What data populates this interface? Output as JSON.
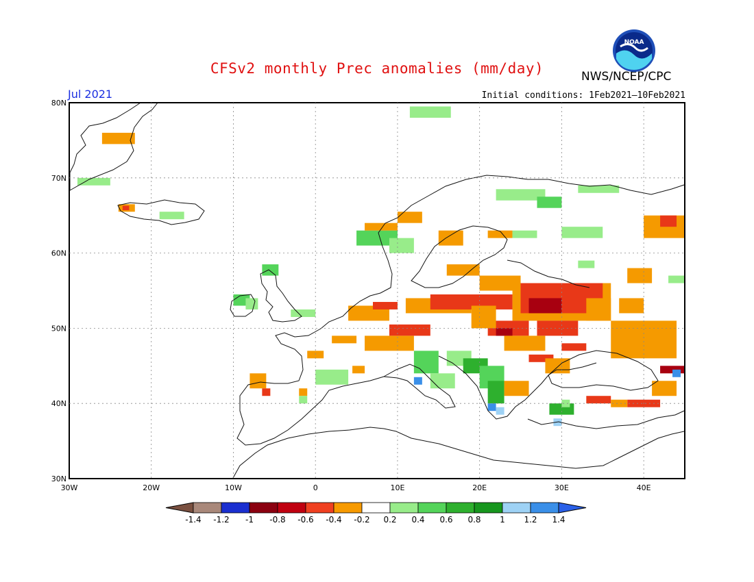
{
  "header": {
    "title": "CFSv2 monthly Prec anomalies (mm/day)",
    "org": "NWS/NCEP/CPC",
    "logo_text": "NOAA",
    "month": "Jul 2021",
    "init": "Initial conditions: 1Feb2021—10Feb2021"
  },
  "map": {
    "lat_labels": [
      "80N",
      "70N",
      "60N",
      "50N",
      "40N",
      "30N"
    ],
    "lon_labels": [
      "30W",
      "20W",
      "10W",
      "0",
      "10E",
      "20E",
      "30E",
      "40E"
    ],
    "lon_range": [
      -30,
      45
    ],
    "lat_range": [
      30,
      80
    ],
    "anomaly_cells": [
      {
        "lon": -26,
        "lat": 74.5,
        "w": 4,
        "h": 1.5,
        "cls": "o"
      },
      {
        "lon": -29,
        "lat": 69,
        "w": 4,
        "h": 1,
        "cls": "lg"
      },
      {
        "lon": -24,
        "lat": 65.5,
        "w": 2,
        "h": 1,
        "cls": "o"
      },
      {
        "lon": -23.5,
        "lat": 65.7,
        "w": 0.8,
        "h": 0.6,
        "cls": "r"
      },
      {
        "lon": -19,
        "lat": 64.5,
        "w": 3,
        "h": 1,
        "cls": "lg"
      },
      {
        "lon": -10,
        "lat": 53,
        "w": 2,
        "h": 1.5,
        "cls": "g"
      },
      {
        "lon": -8.5,
        "lat": 52.5,
        "w": 1.5,
        "h": 1.5,
        "cls": "lg"
      },
      {
        "lon": -6.5,
        "lat": 57,
        "w": 2,
        "h": 1.5,
        "cls": "g"
      },
      {
        "lon": -3,
        "lat": 51.5,
        "w": 3,
        "h": 1,
        "cls": "lg"
      },
      {
        "lon": 5,
        "lat": 61,
        "w": 5,
        "h": 2,
        "cls": "g"
      },
      {
        "lon": 6,
        "lat": 63,
        "w": 4,
        "h": 1,
        "cls": "o"
      },
      {
        "lon": 10,
        "lat": 64,
        "w": 3,
        "h": 1.5,
        "cls": "o"
      },
      {
        "lon": 9,
        "lat": 60,
        "w": 3,
        "h": 2,
        "cls": "lg"
      },
      {
        "lon": 15,
        "lat": 61,
        "w": 3,
        "h": 2,
        "cls": "o"
      },
      {
        "lon": 21,
        "lat": 62,
        "w": 3,
        "h": 1,
        "cls": "o"
      },
      {
        "lon": 22,
        "lat": 67,
        "w": 6,
        "h": 1.5,
        "cls": "lg"
      },
      {
        "lon": 27,
        "lat": 66,
        "w": 3,
        "h": 1.5,
        "cls": "g"
      },
      {
        "lon": 32,
        "lat": 68,
        "w": 5,
        "h": 1,
        "cls": "lg"
      },
      {
        "lon": 30,
        "lat": 62,
        "w": 5,
        "h": 1.5,
        "cls": "lg"
      },
      {
        "lon": 24,
        "lat": 62,
        "w": 3,
        "h": 1,
        "cls": "lg"
      },
      {
        "lon": 16,
        "lat": 57,
        "w": 4,
        "h": 1.5,
        "cls": "o"
      },
      {
        "lon": 11.5,
        "lat": 78,
        "w": 5,
        "h": 1.5,
        "cls": "lg"
      },
      {
        "lon": 38,
        "lat": 56,
        "w": 3,
        "h": 2,
        "cls": "o"
      },
      {
        "lon": 40,
        "lat": 62,
        "w": 5,
        "h": 3,
        "cls": "o"
      },
      {
        "lon": 42,
        "lat": 63.5,
        "w": 2,
        "h": 1.5,
        "cls": "r"
      },
      {
        "lon": 43,
        "lat": 56,
        "w": 2,
        "h": 1,
        "cls": "lg"
      },
      {
        "lon": 32,
        "lat": 58,
        "w": 2,
        "h": 1,
        "cls": "lg"
      },
      {
        "lon": 4,
        "lat": 51,
        "w": 5,
        "h": 2,
        "cls": "o"
      },
      {
        "lon": 7,
        "lat": 52.5,
        "w": 3,
        "h": 1,
        "cls": "r"
      },
      {
        "lon": 11,
        "lat": 52,
        "w": 8,
        "h": 2,
        "cls": "o"
      },
      {
        "lon": 14,
        "lat": 52.5,
        "w": 10,
        "h": 2,
        "cls": "r"
      },
      {
        "lon": 20,
        "lat": 55,
        "w": 5,
        "h": 2,
        "cls": "o"
      },
      {
        "lon": 24,
        "lat": 51,
        "w": 12,
        "h": 5,
        "cls": "o"
      },
      {
        "lon": 25,
        "lat": 52,
        "w": 10,
        "h": 4,
        "cls": "r"
      },
      {
        "lon": 26,
        "lat": 52,
        "w": 4,
        "h": 2,
        "cls": "dr"
      },
      {
        "lon": 21,
        "lat": 49,
        "w": 5,
        "h": 2,
        "cls": "r"
      },
      {
        "lon": 22,
        "lat": 49,
        "w": 2,
        "h": 1,
        "cls": "dr"
      },
      {
        "lon": 19,
        "lat": 50,
        "w": 3,
        "h": 3,
        "cls": "o"
      },
      {
        "lon": 27,
        "lat": 49,
        "w": 5,
        "h": 2,
        "cls": "r"
      },
      {
        "lon": 9,
        "lat": 49,
        "w": 5,
        "h": 1.5,
        "cls": "r"
      },
      {
        "lon": 6,
        "lat": 47,
        "w": 6,
        "h": 2,
        "cls": "o"
      },
      {
        "lon": 2,
        "lat": 48,
        "w": 3,
        "h": 1,
        "cls": "o"
      },
      {
        "lon": -1,
        "lat": 46,
        "w": 2,
        "h": 1,
        "cls": "o"
      },
      {
        "lon": 0,
        "lat": 42.5,
        "w": 4,
        "h": 2,
        "cls": "lg"
      },
      {
        "lon": 4.5,
        "lat": 44,
        "w": 1.5,
        "h": 1,
        "cls": "o"
      },
      {
        "lon": -8,
        "lat": 42,
        "w": 2,
        "h": 2,
        "cls": "o"
      },
      {
        "lon": -6.5,
        "lat": 41,
        "w": 1,
        "h": 1,
        "cls": "r"
      },
      {
        "lon": -2,
        "lat": 41,
        "w": 1,
        "h": 1,
        "cls": "o"
      },
      {
        "lon": -2,
        "lat": 40,
        "w": 1,
        "h": 1,
        "cls": "lg"
      },
      {
        "lon": 12,
        "lat": 44,
        "w": 3,
        "h": 3,
        "cls": "g"
      },
      {
        "lon": 12,
        "lat": 42.5,
        "w": 1,
        "h": 1,
        "cls": "b"
      },
      {
        "lon": 14,
        "lat": 42,
        "w": 3,
        "h": 2,
        "cls": "lg"
      },
      {
        "lon": 16,
        "lat": 45,
        "w": 3,
        "h": 2,
        "cls": "lg"
      },
      {
        "lon": 18,
        "lat": 44,
        "w": 3,
        "h": 2,
        "cls": "mg"
      },
      {
        "lon": 20,
        "lat": 42,
        "w": 3,
        "h": 3,
        "cls": "g"
      },
      {
        "lon": 21,
        "lat": 40,
        "w": 2,
        "h": 3,
        "cls": "mg"
      },
      {
        "lon": 21,
        "lat": 39,
        "w": 1,
        "h": 1,
        "cls": "b"
      },
      {
        "lon": 22,
        "lat": 38.5,
        "w": 1,
        "h": 1,
        "cls": "lb"
      },
      {
        "lon": 23,
        "lat": 41,
        "w": 3,
        "h": 2,
        "cls": "o"
      },
      {
        "lon": 23,
        "lat": 47,
        "w": 5,
        "h": 2,
        "cls": "o"
      },
      {
        "lon": 26,
        "lat": 45.5,
        "w": 3,
        "h": 1,
        "cls": "r"
      },
      {
        "lon": 28,
        "lat": 44,
        "w": 3,
        "h": 2,
        "cls": "o"
      },
      {
        "lon": 30,
        "lat": 47,
        "w": 3,
        "h": 1,
        "cls": "r"
      },
      {
        "lon": 36,
        "lat": 46,
        "w": 8,
        "h": 5,
        "cls": "o"
      },
      {
        "lon": 42,
        "lat": 44,
        "w": 3,
        "h": 1,
        "cls": "dr"
      },
      {
        "lon": 43.5,
        "lat": 43.5,
        "w": 1,
        "h": 1,
        "cls": "b"
      },
      {
        "lon": 41,
        "lat": 41,
        "w": 3,
        "h": 2,
        "cls": "o"
      },
      {
        "lon": 33,
        "lat": 40,
        "w": 3,
        "h": 1,
        "cls": "r"
      },
      {
        "lon": 38,
        "lat": 39.5,
        "w": 4,
        "h": 1,
        "cls": "r"
      },
      {
        "lon": 36,
        "lat": 39.5,
        "w": 2,
        "h": 1,
        "cls": "o"
      },
      {
        "lon": 28.5,
        "lat": 38.5,
        "w": 3,
        "h": 1.5,
        "cls": "mg"
      },
      {
        "lon": 29,
        "lat": 37,
        "w": 1,
        "h": 1,
        "cls": "lb"
      },
      {
        "lon": 30,
        "lat": 39.5,
        "w": 1,
        "h": 1,
        "cls": "lg"
      },
      {
        "lon": 33,
        "lat": 51,
        "w": 3,
        "h": 3,
        "cls": "o"
      },
      {
        "lon": 37,
        "lat": 52,
        "w": 3,
        "h": 2,
        "cls": "o"
      }
    ]
  },
  "colorbar": {
    "labels": [
      "-1.4",
      "-1.2",
      "-1",
      "-0.8",
      "-0.6",
      "-0.4",
      "-0.2",
      "0.2",
      "0.4",
      "0.6",
      "0.8",
      "1",
      "1.2",
      "1.4"
    ],
    "colors": [
      "#7a5040",
      "#a9887a",
      "#1b2fd0",
      "#8b0010",
      "#c00010",
      "#f04020",
      "#f79a00",
      "#ffffff",
      "#98ec8a",
      "#54d45a",
      "#2eb02e",
      "#17961e",
      "#9ed2f5",
      "#3a8fe8",
      "#2a60e8"
    ]
  },
  "legend_classes": {
    "dr": "#a80010",
    "r": "#e83818",
    "o": "#f59a00",
    "lg": "#98ec8a",
    "g": "#54d45a",
    "mg": "#2eb02e",
    "b": "#3a8fe8",
    "lb": "#9ed2f5"
  }
}
